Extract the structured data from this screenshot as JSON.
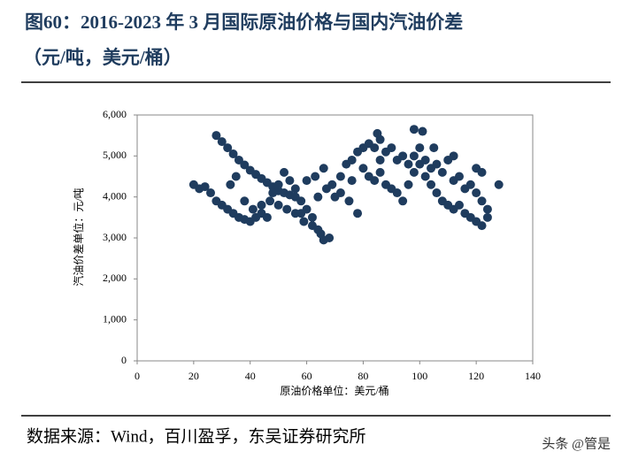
{
  "chart_data": {
    "type": "scatter",
    "title": "图60：2016-2023 年 3 月国际原油价格与国内汽油价差",
    "subtitle": "（元/吨，美元/桶）",
    "x_label": "原油价格单位：美元/桶",
    "y_label": "汽油价差单位：元/吨",
    "source": "数据来源：Wind，百川盈孚，东吴证券研究所",
    "watermark": "头条 @管是",
    "color": "#1f3c5e",
    "xlim": [
      0,
      140
    ],
    "xticks": [
      0,
      20,
      40,
      60,
      80,
      100,
      120,
      140
    ],
    "ylim": [
      0,
      6000
    ],
    "yticks": [
      0,
      {
        "value": 1000,
        "label": "1,000"
      },
      {
        "value": 2000,
        "label": "2,000"
      },
      {
        "value": 3000,
        "label": "3,000"
      },
      {
        "value": 4000,
        "label": "4,000"
      },
      {
        "value": 5000,
        "label": "5,000"
      },
      {
        "value": 6000,
        "label": "6,000"
      }
    ],
    "series": [
      {
        "name": null,
        "color": "#1f3c5e",
        "x": [
          20,
          22,
          24,
          26,
          28,
          30,
          32,
          34,
          36,
          38,
          40,
          42,
          44,
          28,
          30,
          32,
          34,
          36,
          38,
          40,
          42,
          44,
          46,
          48,
          50,
          52,
          54,
          56,
          33,
          35,
          38,
          41,
          44,
          47,
          50,
          53,
          56,
          59,
          62,
          65,
          68,
          66,
          64,
          62,
          60,
          58,
          56,
          54,
          52,
          50,
          48,
          46,
          63,
          66,
          69,
          72,
          75,
          78,
          70,
          72,
          74,
          76,
          78,
          80,
          82,
          84,
          86,
          88,
          90,
          92,
          94,
          96,
          80,
          82,
          84,
          86,
          88,
          90,
          92,
          94,
          96,
          98,
          100,
          102,
          104,
          106,
          108,
          110,
          112,
          114,
          116,
          118,
          120,
          122,
          124,
          98,
          100,
          102,
          104,
          106,
          108,
          110,
          112,
          114,
          116,
          118,
          120,
          122,
          124,
          128,
          98,
          101,
          85,
          60,
          67,
          105,
          112,
          120,
          122,
          76,
          86,
          64,
          58
        ],
        "values": [
          4300,
          4200,
          4250,
          4100,
          3900,
          3800,
          3700,
          3600,
          3500,
          3450,
          3400,
          3500,
          3600,
          5500,
          5350,
          5200,
          5050,
          4900,
          4780,
          4650,
          4550,
          4450,
          4350,
          4250,
          4150,
          4100,
          4050,
          4000,
          4300,
          4500,
          3900,
          3700,
          3800,
          3900,
          3800,
          3700,
          3600,
          3400,
          3300,
          3100,
          3000,
          2950,
          3200,
          3500,
          3700,
          3900,
          4200,
          4400,
          4600,
          4300,
          4100,
          3500,
          4500,
          4700,
          4300,
          4100,
          3900,
          3600,
          4000,
          4500,
          4800,
          4900,
          5100,
          5200,
          5300,
          5200,
          5400,
          5100,
          5200,
          4900,
          5000,
          4800,
          4700,
          4500,
          4400,
          4600,
          4300,
          4200,
          4100,
          3900,
          4300,
          4600,
          4800,
          4500,
          4300,
          4100,
          3900,
          3800,
          3700,
          3800,
          3600,
          3500,
          3400,
          3300,
          3500,
          5000,
          5200,
          4900,
          4700,
          4800,
          4600,
          4900,
          4400,
          4500,
          4200,
          4300,
          4100,
          3900,
          3700,
          4300,
          5650,
          5600,
          5550,
          4400,
          4200,
          5200,
          5000,
          4700,
          4600,
          4400,
          4900,
          4000,
          3600
        ]
      }
    ]
  }
}
